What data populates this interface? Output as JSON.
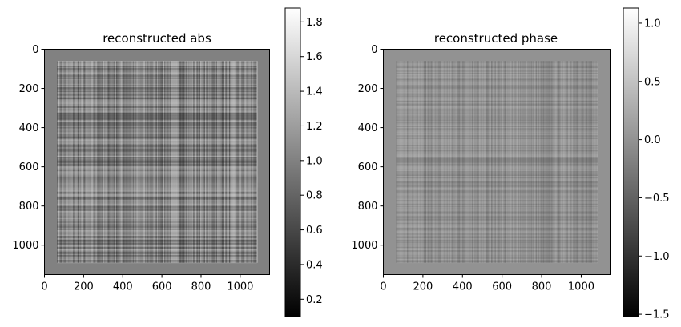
{
  "chart_data": [
    {
      "type": "heatmap",
      "title": "reconstructed abs",
      "colormap": "gray",
      "extent": {
        "xlim": [
          0,
          1150
        ],
        "ylim": [
          1150,
          0
        ]
      },
      "xticks": [
        0,
        200,
        400,
        600,
        800,
        1000
      ],
      "yticks": [
        0,
        200,
        400,
        600,
        800,
        1000
      ],
      "content_region": {
        "x": [
          65,
          1085
        ],
        "y": [
          60,
          1090
        ]
      },
      "background_value": 1.0,
      "colorbar": {
        "range": [
          0.1,
          1.88
        ],
        "ticks": [
          0.2,
          0.4,
          0.6,
          0.8,
          1.0,
          1.2,
          1.4,
          1.6,
          1.8
        ],
        "tick_labels": [
          "0.2",
          "0.4",
          "0.6",
          "0.8",
          "1.0",
          "1.2",
          "1.4",
          "1.6",
          "1.8"
        ]
      }
    },
    {
      "type": "heatmap",
      "title": "reconstructed phase",
      "colormap": "gray",
      "extent": {
        "xlim": [
          0,
          1150
        ],
        "ylim": [
          1150,
          0
        ]
      },
      "xticks": [
        0,
        200,
        400,
        600,
        800,
        1000
      ],
      "yticks": [
        0,
        200,
        400,
        600,
        800,
        1000
      ],
      "content_region": {
        "x": [
          65,
          1085
        ],
        "y": [
          60,
          1090
        ]
      },
      "background_value": 0.0,
      "colorbar": {
        "range": [
          -1.52,
          1.13
        ],
        "ticks": [
          -1.5,
          -1.0,
          -0.5,
          0.0,
          0.5,
          1.0
        ],
        "tick_labels": [
          "−1.5",
          "−1.0",
          "−0.5",
          "0.0",
          "0.5",
          "1.0"
        ]
      }
    }
  ]
}
